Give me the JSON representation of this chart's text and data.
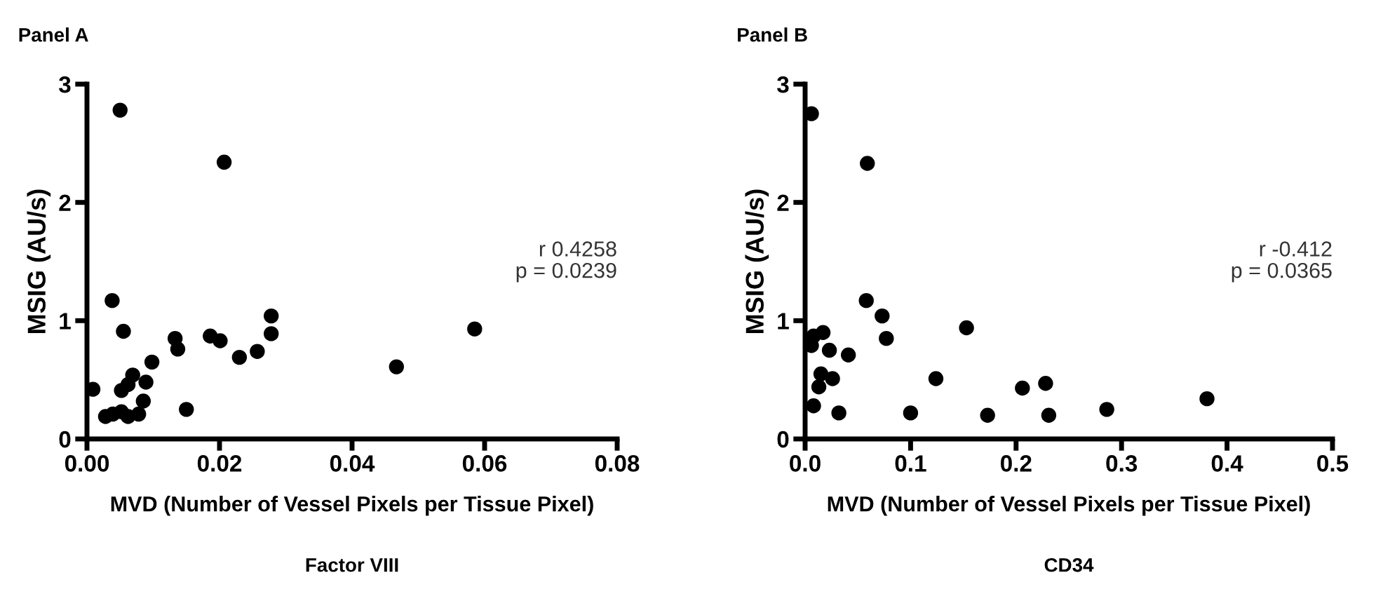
{
  "chart_data": [
    {
      "type": "scatter",
      "title": "Panel A",
      "xlabel": "MVD (Number of Vessel Pixels per Tissue Pixel)",
      "ylabel": "MSIG (AU/s)",
      "x": [
        0.0009,
        0.005,
        0.0207,
        0.0038,
        0.0055,
        0.0133,
        0.0137,
        0.0186,
        0.0201,
        0.023,
        0.0257,
        0.0278,
        0.0278,
        0.0098,
        0.0089,
        0.0085,
        0.015,
        0.0069,
        0.0052,
        0.0062,
        0.0028,
        0.0039,
        0.0052,
        0.0062,
        0.0078,
        0.0467,
        0.0585
      ],
      "series": [
        {
          "color": "#000000",
          "values": [
            0.42,
            2.78,
            2.34,
            1.17,
            0.91,
            0.85,
            0.76,
            0.87,
            0.83,
            0.69,
            0.74,
            1.04,
            0.89,
            0.65,
            0.48,
            0.32,
            0.25,
            0.54,
            0.41,
            0.46,
            0.19,
            0.21,
            0.23,
            0.19,
            0.21,
            0.61,
            0.93
          ]
        }
      ],
      "xlim": [
        0,
        0.08
      ],
      "xticks": [
        {
          "value": 0,
          "label": "0.00"
        },
        0.02,
        0.04,
        0.06,
        0.08
      ],
      "ylim": [
        0,
        3
      ],
      "yticks": [
        0,
        1,
        2,
        3
      ],
      "marker": "circle",
      "grid": false,
      "legend": false,
      "annotations": [
        "r 0.4258\np = 0.0239",
        "Factor VIII"
      ]
    },
    {
      "type": "scatter",
      "title": "Panel B",
      "xlabel": "MVD (Number of Vessel Pixels per Tissue Pixel)",
      "ylabel": "MSIG (AU/s)",
      "x": [
        0.006,
        0.059,
        0.058,
        0.073,
        0.077,
        0.153,
        0.006,
        0.008,
        0.017,
        0.023,
        0.041,
        0.015,
        0.013,
        0.026,
        0.008,
        0.032,
        0.1,
        0.124,
        0.173,
        0.206,
        0.228,
        0.231,
        0.286,
        0.381
      ],
      "series": [
        {
          "color": "#000000",
          "values": [
            2.75,
            2.33,
            1.17,
            1.04,
            0.85,
            0.94,
            0.79,
            0.87,
            0.9,
            0.75,
            0.71,
            0.55,
            0.44,
            0.51,
            0.28,
            0.22,
            0.22,
            0.51,
            0.2,
            0.43,
            0.47,
            0.2,
            0.25,
            0.34
          ]
        }
      ],
      "xlim": [
        0,
        0.5
      ],
      "xticks": [
        {
          "value": 0,
          "label": "0.0"
        },
        0.1,
        0.2,
        0.3,
        0.4,
        0.5
      ],
      "ylim": [
        0,
        3
      ],
      "yticks": [
        0,
        1,
        2,
        3
      ],
      "marker": "circle",
      "grid": false,
      "legend": false,
      "annotations": [
        "r -0.412\np = 0.0365",
        "CD34"
      ]
    }
  ]
}
